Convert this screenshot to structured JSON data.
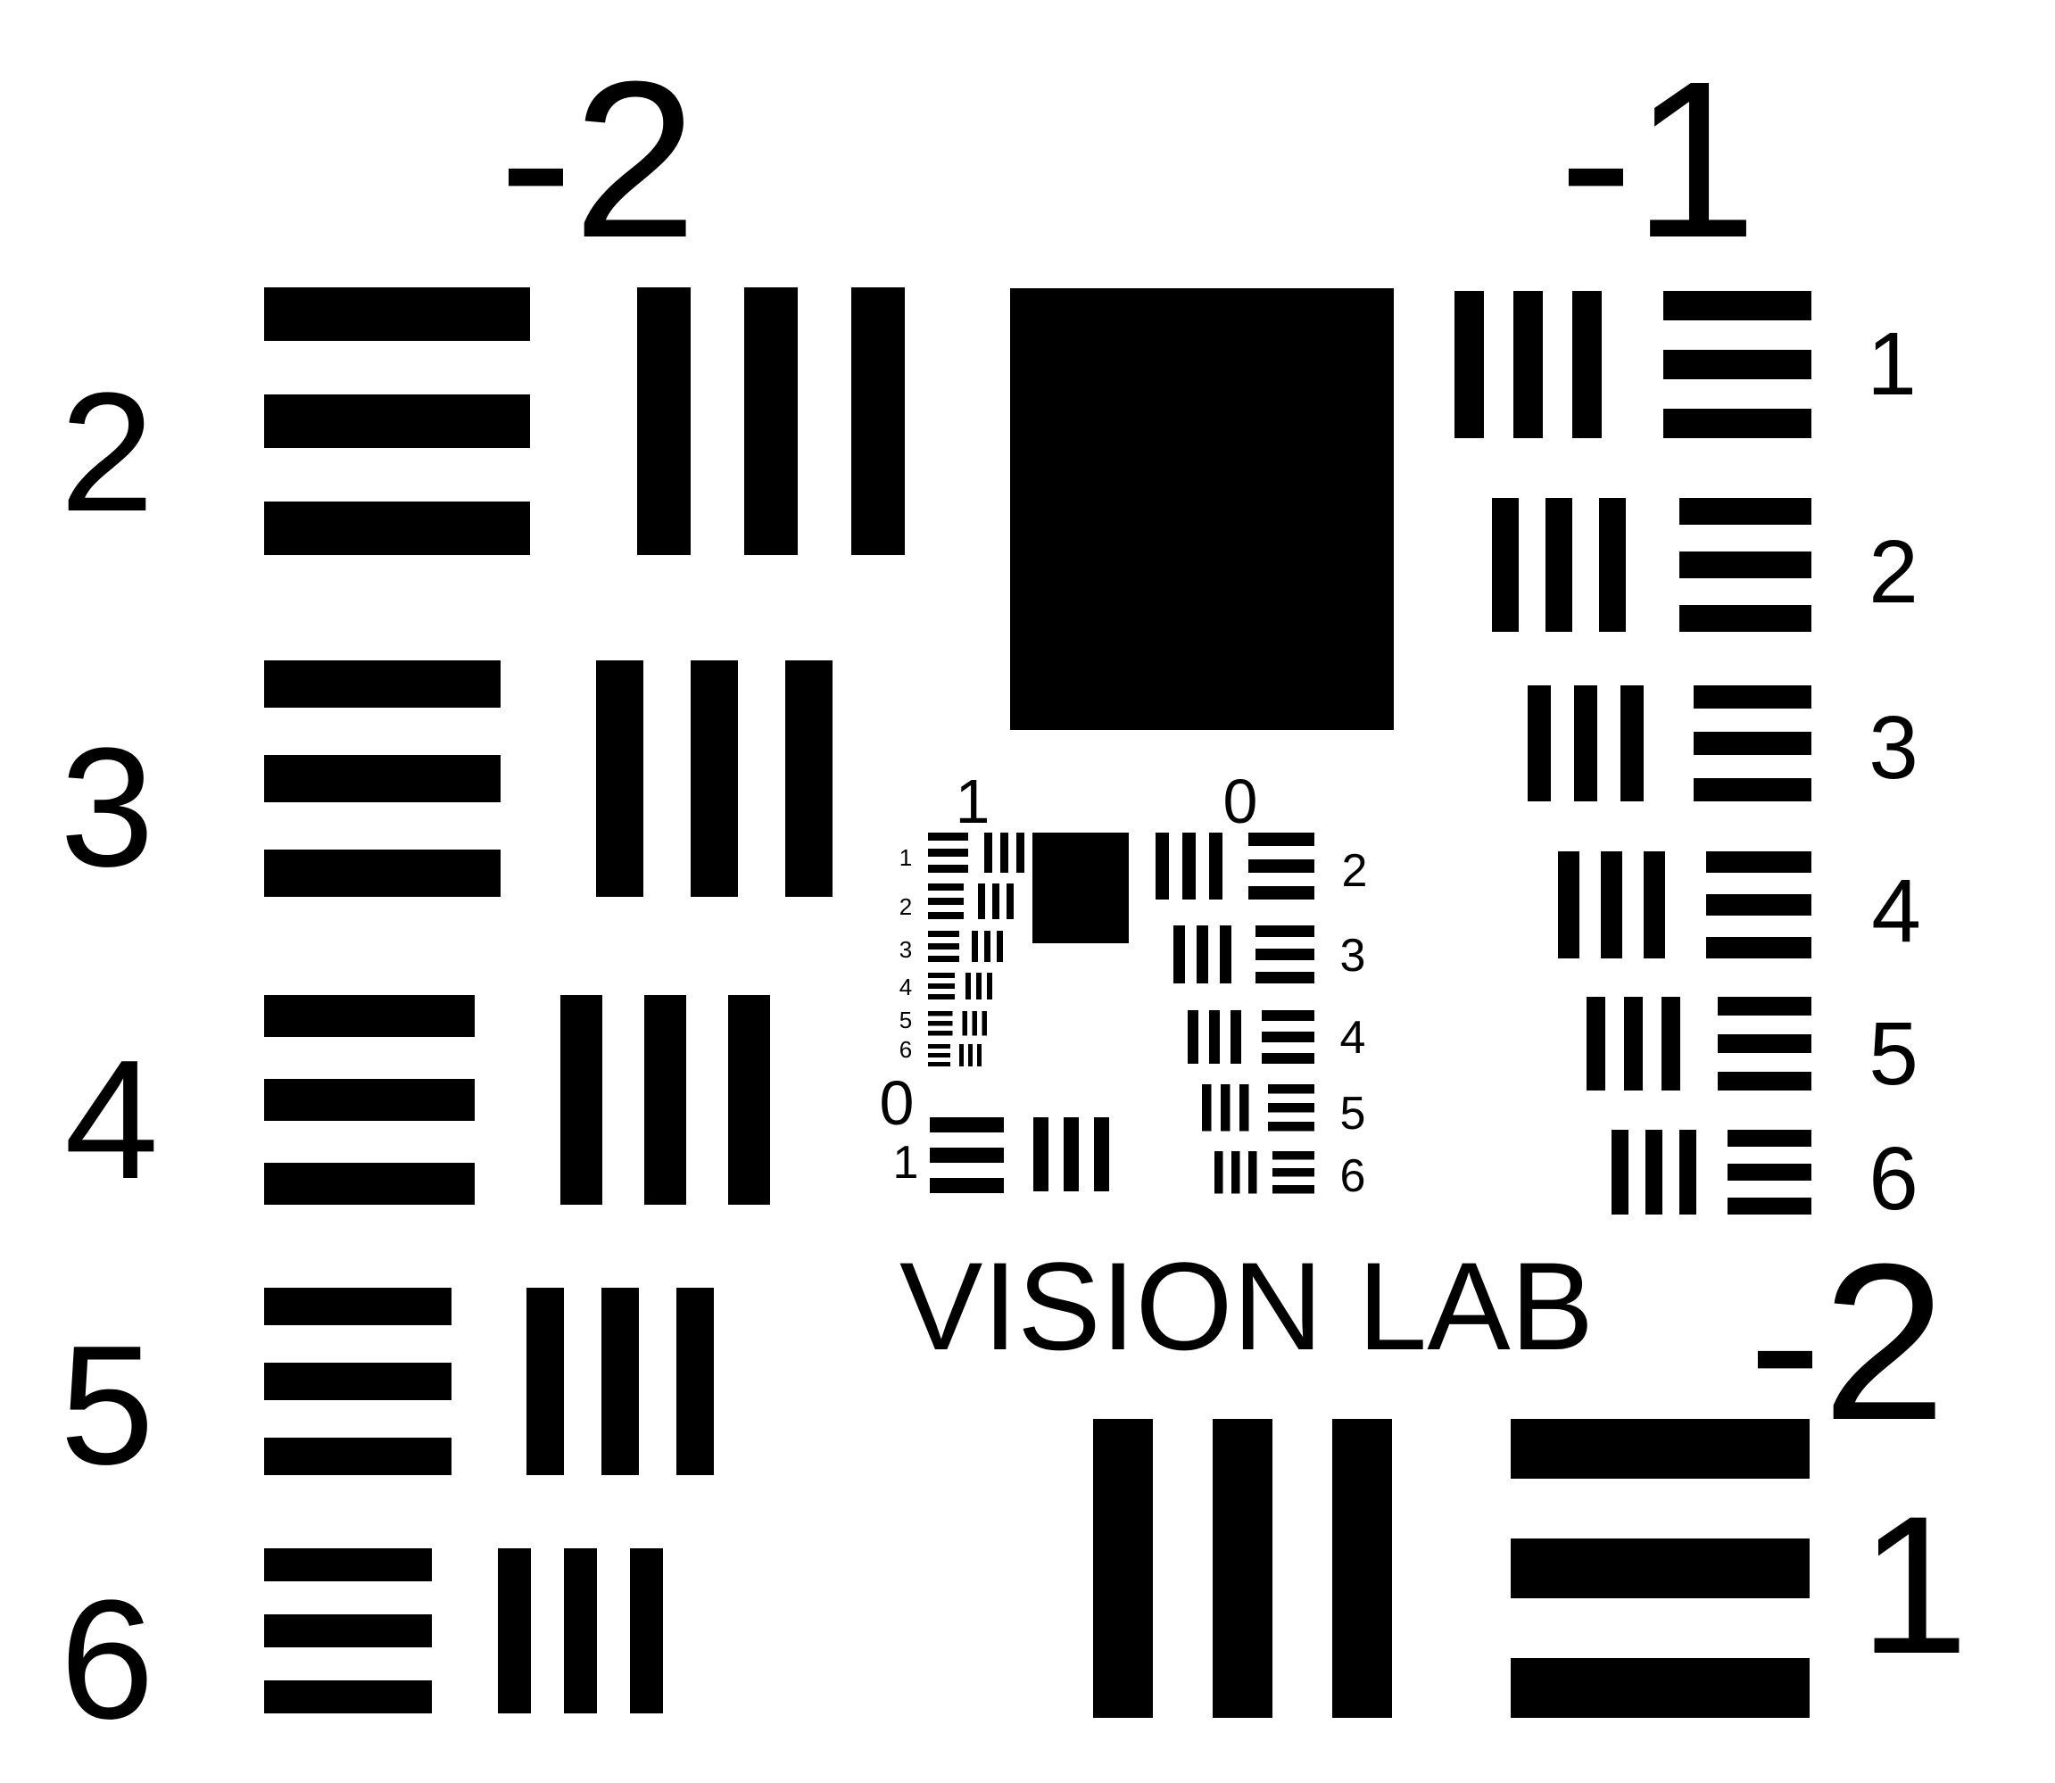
{
  "colors": {
    "background": "#ffffff",
    "ink": "#000000"
  },
  "title": "VISION LAB",
  "coarse": {
    "group_left": {
      "number": "-2",
      "elements": [
        "2",
        "3",
        "4",
        "5",
        "6"
      ]
    },
    "group_right": {
      "number": "-1",
      "elements": [
        "1",
        "2",
        "3",
        "4",
        "5",
        "6"
      ]
    },
    "group_bottom": {
      "number": "-2",
      "elements": [
        "1"
      ]
    }
  },
  "fine": {
    "group_left": {
      "number": "1",
      "elements": [
        "1",
        "2",
        "3",
        "4",
        "5",
        "6"
      ]
    },
    "group_right": {
      "number": "0",
      "elements": [
        "2",
        "3",
        "4",
        "5",
        "6"
      ]
    },
    "group_bottom": {
      "number": "0",
      "elements": [
        "1"
      ]
    }
  }
}
